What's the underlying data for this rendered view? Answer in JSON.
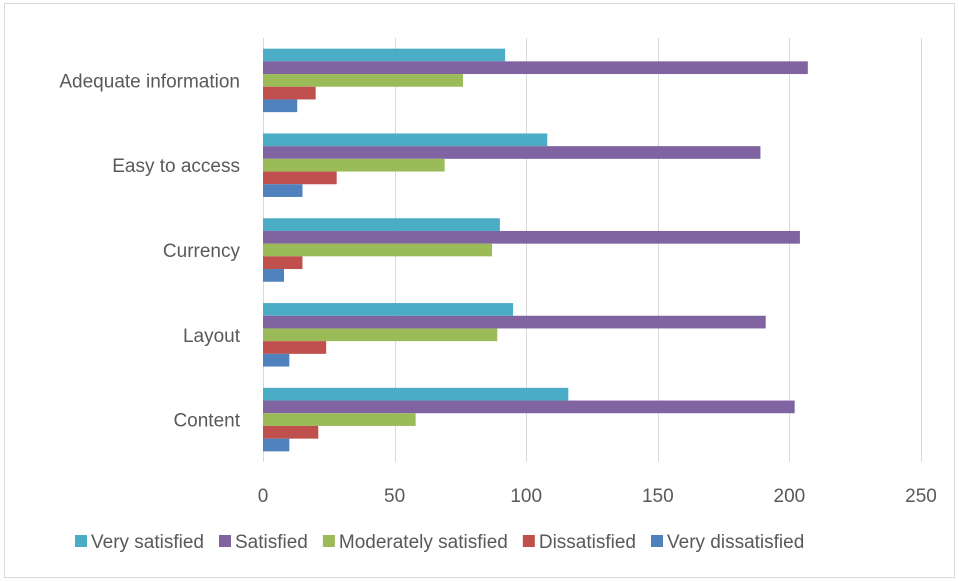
{
  "chart_data": {
    "type": "bar",
    "orientation": "horizontal",
    "title": "",
    "xlabel": "",
    "ylabel": "",
    "categories": [
      "Adequate information",
      "Easy to access",
      "Currency",
      "Layout",
      "Content"
    ],
    "xlim": [
      0,
      250
    ],
    "xticks": [
      0,
      50,
      100,
      150,
      200,
      250
    ],
    "grid": "vertical",
    "legend_position": "bottom",
    "series": [
      {
        "name": "Very satisfied",
        "color": "#4bacc6",
        "values": [
          92,
          108,
          90,
          95,
          116
        ]
      },
      {
        "name": "Satisfied",
        "color": "#8064a2",
        "values": [
          207,
          189,
          204,
          191,
          202
        ]
      },
      {
        "name": "Moderately satisfied",
        "color": "#9bbb59",
        "values": [
          76,
          69,
          87,
          89,
          58
        ]
      },
      {
        "name": "Dissatisfied",
        "color": "#c0504d",
        "values": [
          20,
          28,
          15,
          24,
          21
        ]
      },
      {
        "name": "Very dissatisfied",
        "color": "#4f81bd",
        "values": [
          13,
          15,
          8,
          10,
          10
        ]
      }
    ]
  }
}
